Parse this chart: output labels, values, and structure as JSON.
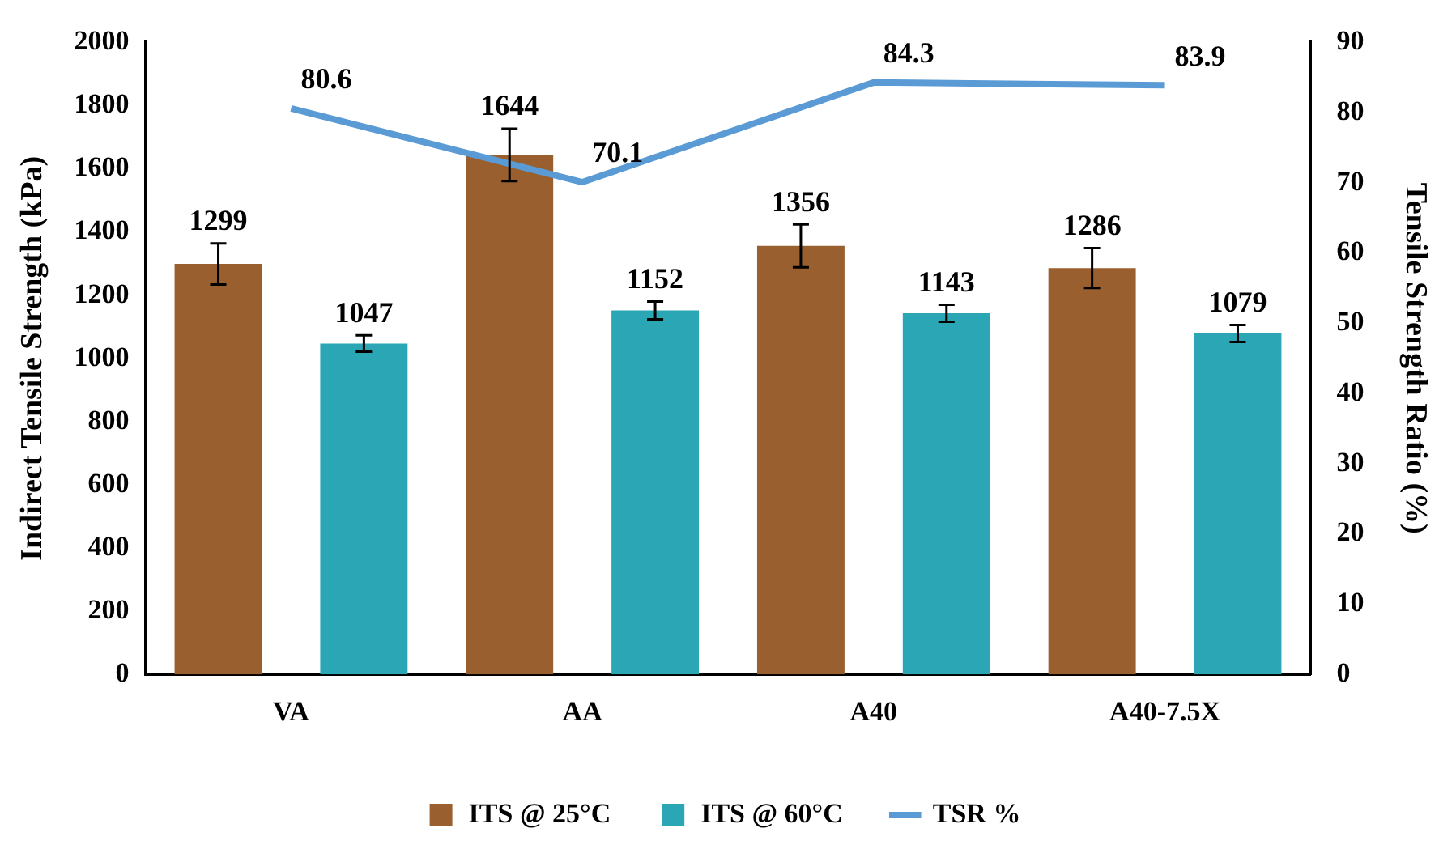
{
  "chart_data": {
    "type": "bar",
    "xlabel": null,
    "ylabel": "Indirect Tensile Strength (kPa)",
    "y2label": "Tensile Strength Ratio (%)",
    "categories": [
      "VA",
      "AA",
      "A40",
      "A40-7.5X"
    ],
    "series": [
      {
        "name": "ITS @ 25°C",
        "color": "#9a5f2e",
        "values": [
          1299,
          1644,
          1356,
          1286
        ],
        "errors": [
          65,
          83,
          68,
          63
        ]
      },
      {
        "name": "ITS @ 60°C",
        "color": "#2ba6b5",
        "values": [
          1047,
          1152,
          1143,
          1079
        ],
        "errors": [
          26,
          28,
          27,
          27
        ]
      },
      {
        "name": "TSR %",
        "type": "line",
        "axis": "y2",
        "color": "#5b9bd5",
        "values": [
          80.6,
          70.1,
          84.3,
          83.9
        ],
        "marker": "none"
      }
    ],
    "ylim": [
      0,
      2000
    ],
    "yticks": [
      0,
      200,
      400,
      600,
      800,
      1000,
      1200,
      1400,
      1600,
      1800,
      2000
    ],
    "y2lim": [
      0,
      90
    ],
    "y2ticks": [
      0,
      10,
      20,
      30,
      40,
      50,
      60,
      70,
      80,
      90
    ],
    "grid": false,
    "legend": "bottom",
    "data_labels": true
  }
}
